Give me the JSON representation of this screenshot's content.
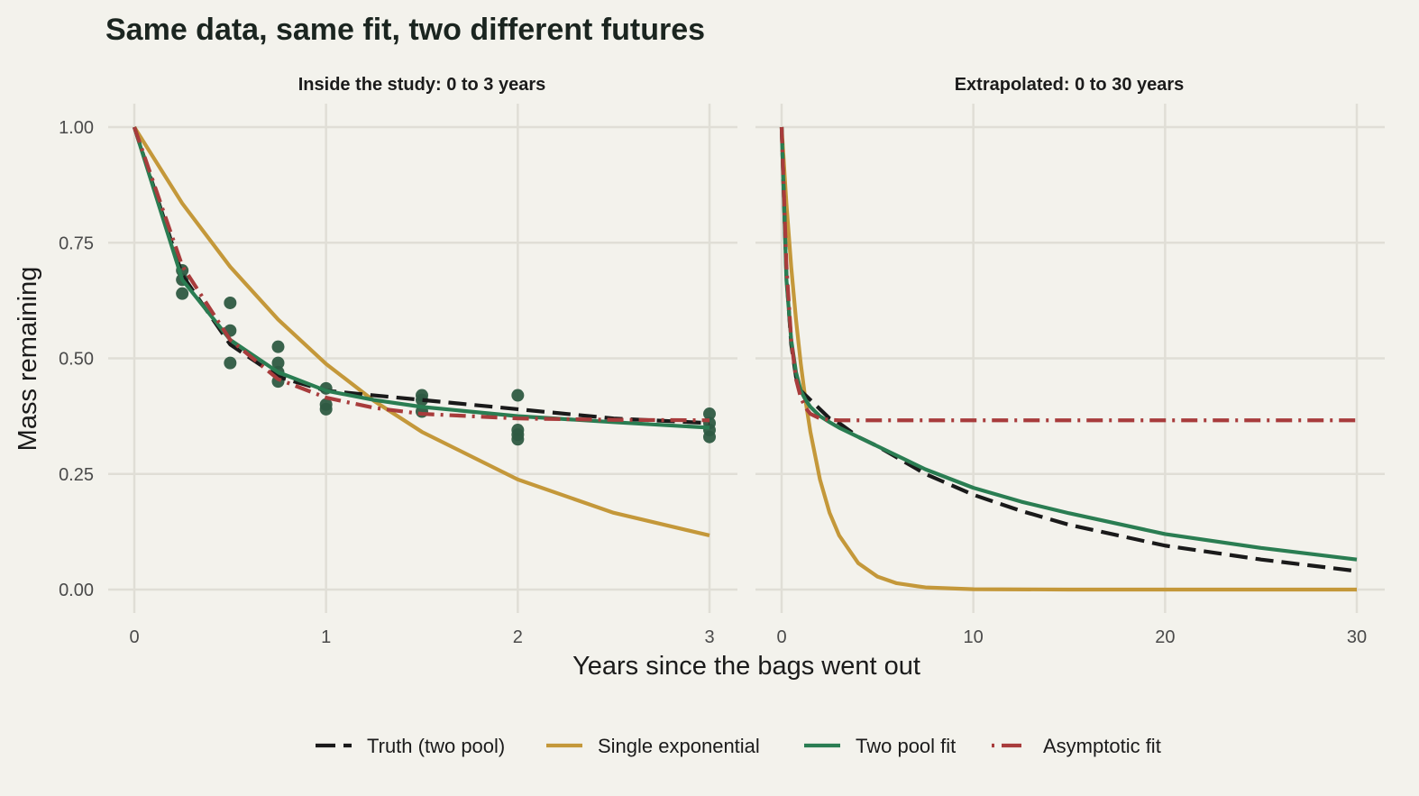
{
  "chart_data": {
    "type": "line",
    "title": "Same data, same fit, two different futures",
    "xlabel": "Years since the bags went out",
    "ylabel": "Mass remaining",
    "grid": true,
    "legend_position": "bottom",
    "ylim": [
      0,
      1
    ],
    "yticks": [
      0,
      0.25,
      0.5,
      0.75,
      1
    ],
    "ytick_labels": [
      "0.00",
      "0.25",
      "0.50",
      "0.75",
      "1.00"
    ],
    "panels": [
      {
        "title": "Inside the study: 0 to 3 years",
        "xlim": [
          0,
          3
        ],
        "xticks": [
          0,
          1,
          2,
          3
        ],
        "xtick_labels": [
          "0",
          "1",
          "2",
          "3"
        ]
      },
      {
        "title": "Extrapolated: 0 to 30 years",
        "xlim": [
          0,
          30
        ],
        "xticks": [
          0,
          10,
          20,
          30
        ],
        "xtick_labels": [
          "0",
          "10",
          "20",
          "30"
        ]
      }
    ],
    "series": [
      {
        "name": "Truth (two pool)",
        "color": "#1a1a1a",
        "dash": "dashed",
        "x": [
          0,
          0.25,
          0.5,
          0.75,
          1,
          1.25,
          1.5,
          2,
          2.5,
          3,
          4,
          5,
          7.5,
          10,
          12.5,
          15,
          20,
          25,
          30
        ],
        "y": [
          1,
          0.68,
          0.53,
          0.46,
          0.43,
          0.42,
          0.41,
          0.39,
          0.37,
          0.36,
          0.33,
          0.31,
          0.25,
          0.205,
          0.17,
          0.14,
          0.095,
          0.065,
          0.04
        ]
      },
      {
        "name": "Single exponential",
        "color": "#c4983a",
        "dash": "solid",
        "x": [
          0,
          0.25,
          0.5,
          0.75,
          1,
          1.25,
          1.5,
          2,
          2.5,
          3,
          4,
          5,
          6,
          7.5,
          10,
          15,
          20,
          30
        ],
        "y": [
          1,
          0.835,
          0.698,
          0.584,
          0.488,
          0.408,
          0.341,
          0.238,
          0.166,
          0.117,
          0.057,
          0.028,
          0.0137,
          0.0047,
          0.0008,
          0,
          0,
          0
        ]
      },
      {
        "name": "Two pool fit",
        "color": "#2a7d52",
        "dash": "solid",
        "x": [
          0,
          0.25,
          0.5,
          0.75,
          1,
          1.25,
          1.5,
          2,
          2.5,
          3,
          4,
          5,
          7.5,
          10,
          12.5,
          15,
          20,
          25,
          30
        ],
        "y": [
          1,
          0.67,
          0.54,
          0.47,
          0.43,
          0.41,
          0.395,
          0.375,
          0.362,
          0.35,
          0.33,
          0.31,
          0.26,
          0.22,
          0.19,
          0.165,
          0.12,
          0.09,
          0.065
        ]
      },
      {
        "name": "Asymptotic fit",
        "color": "#a83c3c",
        "dash": "dashdot",
        "x": [
          0,
          0.25,
          0.5,
          0.75,
          1,
          1.25,
          1.5,
          2,
          2.5,
          3,
          5,
          10,
          20,
          30
        ],
        "y": [
          1,
          0.7,
          0.54,
          0.455,
          0.415,
          0.393,
          0.38,
          0.37,
          0.367,
          0.366,
          0.366,
          0.366,
          0.366,
          0.366
        ]
      }
    ],
    "observations": {
      "color": "#2e5a42",
      "x": [
        0.25,
        0.25,
        0.25,
        0.5,
        0.5,
        0.5,
        0.75,
        0.75,
        0.75,
        0.75,
        1,
        1,
        1,
        1.5,
        1.5,
        1.5,
        2,
        2,
        2,
        2,
        3,
        3,
        3,
        3
      ],
      "y": [
        0.69,
        0.67,
        0.64,
        0.62,
        0.56,
        0.49,
        0.525,
        0.49,
        0.47,
        0.45,
        0.435,
        0.4,
        0.39,
        0.42,
        0.41,
        0.385,
        0.42,
        0.345,
        0.335,
        0.325,
        0.38,
        0.36,
        0.345,
        0.33
      ]
    }
  }
}
